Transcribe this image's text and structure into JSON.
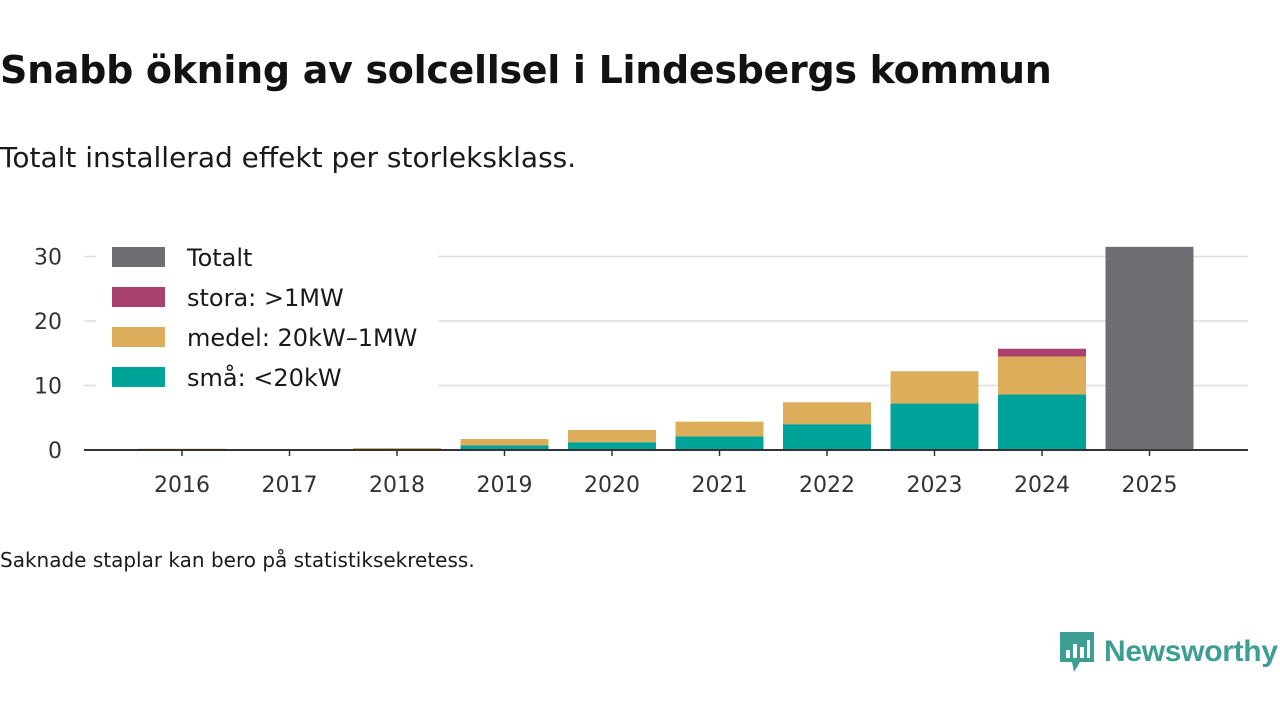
{
  "header": {
    "title": "Snabb ökning av solcellsel i Lindesbergs kommun",
    "subtitle": "Totalt installerad effekt per storleksklass."
  },
  "footer": {
    "note": "Saknade staplar kan bero på statistiksekretess.",
    "brand": "Newsworthy"
  },
  "colors": {
    "total": "#6e6e73",
    "large": "#a8416b",
    "medium": "#dcad5b",
    "small": "#00a399",
    "brand": "#3d9e93",
    "grid": "#dddddd",
    "axis": "#333333"
  },
  "chart_data": {
    "type": "bar",
    "stacked": true,
    "title": "Snabb ökning av solcellsel i Lindesbergs kommun",
    "subtitle": "Totalt installerad effekt per storleksklass.",
    "categories": [
      "2016",
      "2017",
      "2018",
      "2019",
      "2020",
      "2021",
      "2022",
      "2023",
      "2024",
      "2025"
    ],
    "ylim": [
      0,
      32
    ],
    "yticks": [
      0,
      10,
      20,
      30
    ],
    "grid": true,
    "legend_position": "top-left",
    "legend": [
      "Totalt",
      "stora: >1MW",
      "medel: 20kW–1MW",
      "små: <20kW"
    ],
    "series": [
      {
        "name": "små: <20kW",
        "key": "small",
        "values": [
          0.05,
          0.05,
          0.2,
          0.7,
          1.2,
          2.1,
          4.0,
          7.2,
          8.6,
          null
        ]
      },
      {
        "name": "medel: 20kW–1MW",
        "key": "medium",
        "values": [
          0.15,
          0.05,
          0.1,
          1.0,
          1.9,
          2.3,
          3.4,
          5.0,
          5.9,
          null
        ]
      },
      {
        "name": "stora: >1MW",
        "key": "large",
        "values": [
          null,
          null,
          null,
          null,
          null,
          null,
          null,
          null,
          1.2,
          null
        ]
      },
      {
        "name": "Totalt",
        "key": "total",
        "values": [
          null,
          null,
          null,
          null,
          null,
          null,
          null,
          null,
          null,
          31.5
        ]
      }
    ]
  }
}
